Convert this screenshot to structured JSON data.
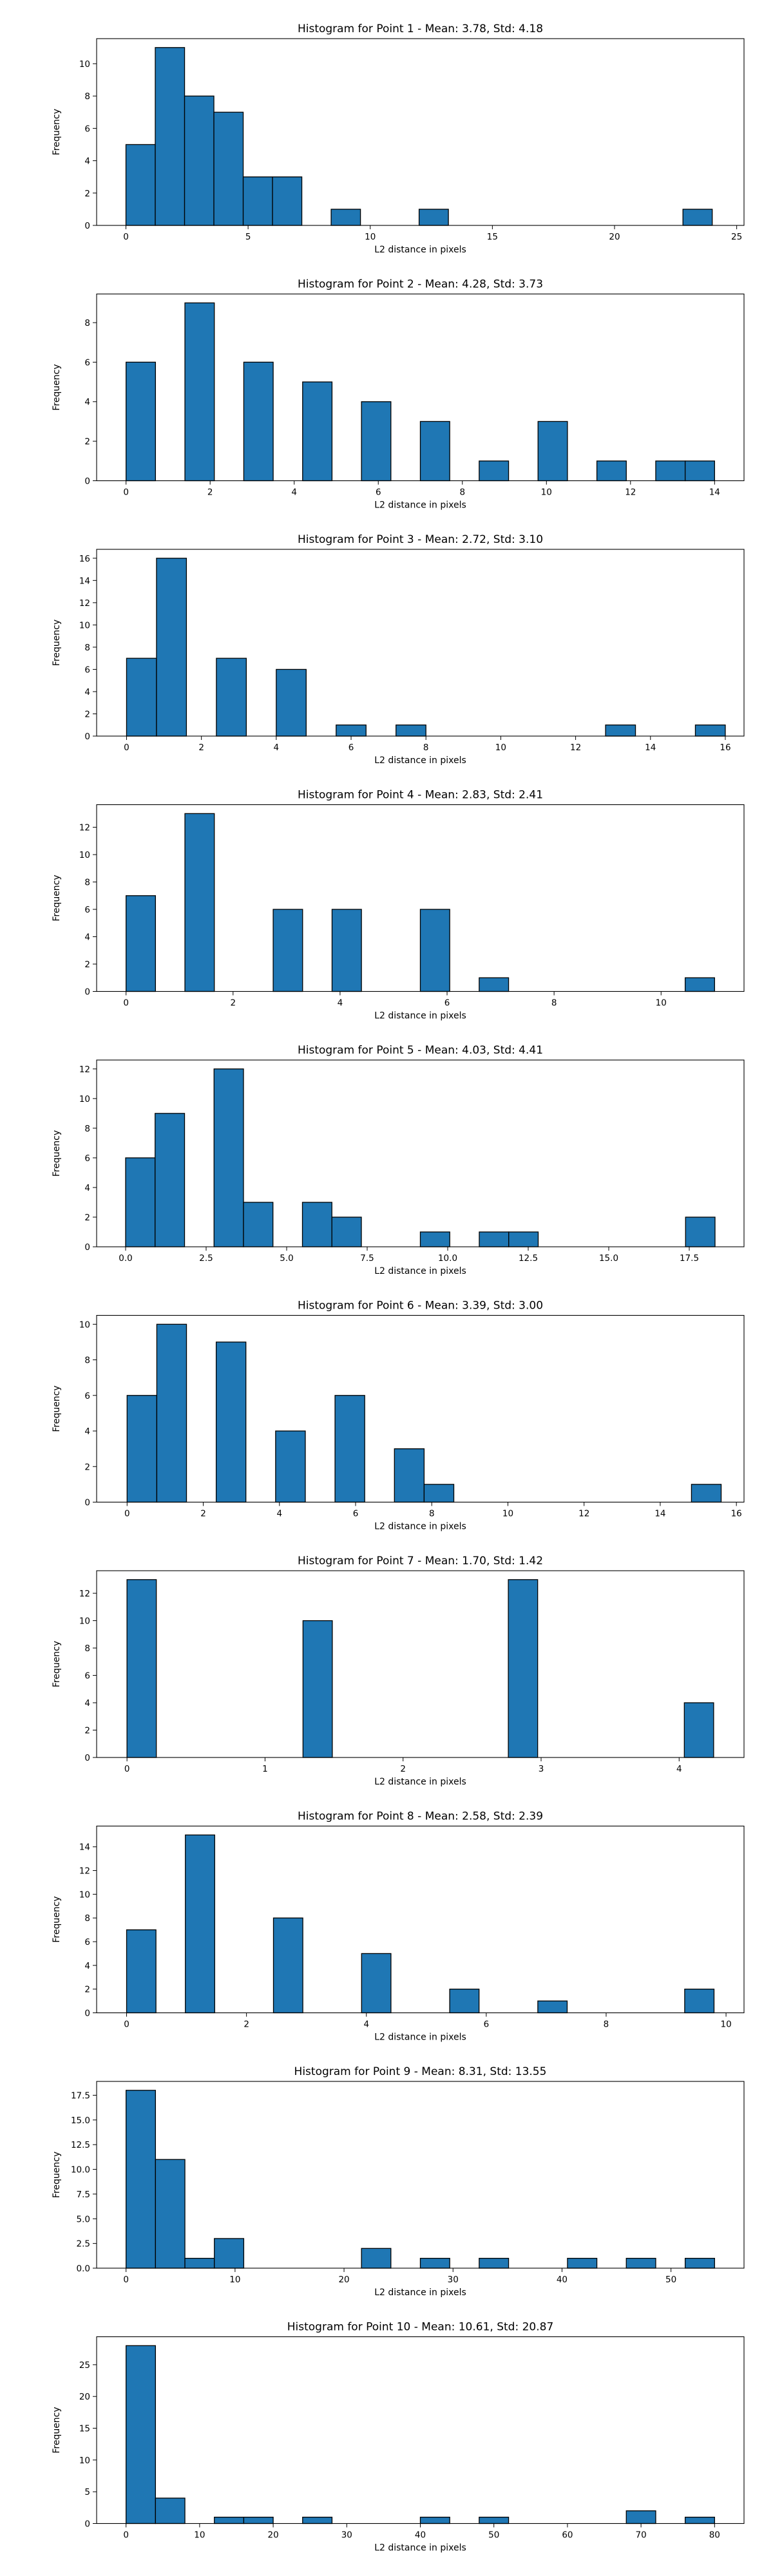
{
  "figure": {
    "background": "#ffffff",
    "bar_color": "#1f77b4",
    "edge_color": "#000000"
  },
  "chart_data": [
    {
      "type": "bar",
      "title": "Histogram for Point 1 - Mean: 3.78, Std: 4.18",
      "xlabel": "L2 distance in pixels",
      "ylabel": "Frequency",
      "xlim": [
        -1.2,
        25.3
      ],
      "ylim": [
        0,
        11.55
      ],
      "xticks": [
        0,
        5,
        10,
        15,
        20,
        25
      ],
      "xtick_labels": [
        "0",
        "5",
        "10",
        "15",
        "20",
        "25"
      ],
      "yticks": [
        0,
        2,
        4,
        6,
        8,
        10
      ],
      "ytick_labels": [
        "0",
        "2",
        "4",
        "6",
        "8",
        "10"
      ],
      "bins": [
        [
          0,
          1.2,
          5
        ],
        [
          1.2,
          2.4,
          11
        ],
        [
          2.4,
          3.6,
          8
        ],
        [
          3.6,
          4.8,
          7
        ],
        [
          4.8,
          6.0,
          3
        ],
        [
          6.0,
          7.2,
          3
        ],
        [
          8.4,
          9.6,
          1
        ],
        [
          12.0,
          13.2,
          1
        ],
        [
          22.8,
          24.0,
          1
        ]
      ],
      "grid": false
    },
    {
      "type": "bar",
      "title": "Histogram for Point 2 - Mean: 4.28, Std: 3.73",
      "xlabel": "L2 distance in pixels",
      "ylabel": "Frequency",
      "xlim": [
        -0.7,
        14.7
      ],
      "ylim": [
        0,
        9.45
      ],
      "xticks": [
        0,
        2,
        4,
        6,
        8,
        10,
        12,
        14
      ],
      "xtick_labels": [
        "0",
        "2",
        "4",
        "6",
        "8",
        "10",
        "12",
        "14"
      ],
      "yticks": [
        0,
        2,
        4,
        6,
        8
      ],
      "ytick_labels": [
        "0",
        "2",
        "4",
        "6",
        "8"
      ],
      "bins": [
        [
          0,
          0.7,
          6
        ],
        [
          1.4,
          2.1,
          9
        ],
        [
          2.8,
          3.5,
          6
        ],
        [
          4.2,
          4.9,
          5
        ],
        [
          5.6,
          6.3,
          4
        ],
        [
          7.0,
          7.7,
          3
        ],
        [
          8.4,
          9.1,
          1
        ],
        [
          9.8,
          10.5,
          3
        ],
        [
          11.2,
          11.9,
          1
        ],
        [
          12.6,
          13.3,
          1
        ],
        [
          13.3,
          14.0,
          1
        ]
      ],
      "grid": false
    },
    {
      "type": "bar",
      "title": "Histogram for Point 3 - Mean: 2.72, Std: 3.10",
      "xlabel": "L2 distance in pixels",
      "ylabel": "Frequency",
      "xlim": [
        -0.8,
        16.5
      ],
      "ylim": [
        0,
        16.8
      ],
      "xticks": [
        0,
        2,
        4,
        6,
        8,
        10,
        12,
        14,
        16
      ],
      "xtick_labels": [
        "0",
        "2",
        "4",
        "6",
        "8",
        "10",
        "12",
        "14",
        "16"
      ],
      "yticks": [
        0,
        2,
        4,
        6,
        8,
        10,
        12,
        14,
        16
      ],
      "ytick_labels": [
        "0",
        "2",
        "4",
        "6",
        "8",
        "10",
        "12",
        "14",
        "16"
      ],
      "bins": [
        [
          0,
          0.8,
          7
        ],
        [
          0.8,
          1.6,
          16
        ],
        [
          2.4,
          3.2,
          7
        ],
        [
          4.0,
          4.8,
          6
        ],
        [
          5.6,
          6.4,
          1
        ],
        [
          7.2,
          8.0,
          1
        ],
        [
          12.8,
          13.6,
          1
        ],
        [
          15.2,
          16.0,
          1
        ]
      ],
      "grid": false
    },
    {
      "type": "bar",
      "title": "Histogram for Point 4 - Mean: 2.83, Std: 2.41",
      "xlabel": "L2 distance in pixels",
      "ylabel": "Frequency",
      "xlim": [
        -0.55,
        11.55
      ],
      "ylim": [
        0,
        13.65
      ],
      "xticks": [
        0,
        2,
        4,
        6,
        8,
        10
      ],
      "xtick_labels": [
        "0",
        "2",
        "4",
        "6",
        "8",
        "10"
      ],
      "yticks": [
        0,
        2,
        4,
        6,
        8,
        10,
        12
      ],
      "ytick_labels": [
        "0",
        "2",
        "4",
        "6",
        "8",
        "10",
        "12"
      ],
      "bins": [
        [
          0,
          0.55,
          7
        ],
        [
          1.1,
          1.65,
          13
        ],
        [
          2.75,
          3.3,
          6
        ],
        [
          3.85,
          4.4,
          6
        ],
        [
          5.5,
          6.05,
          6
        ],
        [
          6.6,
          7.15,
          1
        ],
        [
          10.45,
          11.0,
          1
        ]
      ],
      "grid": false
    },
    {
      "type": "bar",
      "title": "Histogram for Point 5 - Mean: 4.03, Std: 4.41",
      "xlabel": "L2 distance in pixels",
      "ylabel": "Frequency",
      "xlim": [
        -0.9,
        19.2
      ],
      "ylim": [
        0,
        12.6
      ],
      "xticks": [
        0,
        2.5,
        5,
        7.5,
        10,
        12.5,
        15,
        17.5
      ],
      "xtick_labels": [
        "0.0",
        "2.5",
        "5.0",
        "7.5",
        "10.0",
        "12.5",
        "15.0",
        "17.5"
      ],
      "yticks": [
        0,
        2,
        4,
        6,
        8,
        10,
        12
      ],
      "ytick_labels": [
        "0",
        "2",
        "4",
        "6",
        "8",
        "10",
        "12"
      ],
      "bins": [
        [
          0,
          0.915,
          6
        ],
        [
          0.915,
          1.83,
          9
        ],
        [
          2.745,
          3.66,
          12
        ],
        [
          3.66,
          4.575,
          3
        ],
        [
          5.49,
          6.405,
          3
        ],
        [
          6.405,
          7.32,
          2
        ],
        [
          9.15,
          10.065,
          1
        ],
        [
          10.98,
          11.895,
          1
        ],
        [
          11.895,
          12.81,
          1
        ],
        [
          17.385,
          18.3,
          2
        ]
      ],
      "grid": false
    },
    {
      "type": "bar",
      "title": "Histogram for Point 6 - Mean: 3.39, Std: 3.00",
      "xlabel": "L2 distance in pixels",
      "ylabel": "Frequency",
      "xlim": [
        -0.8,
        16.2
      ],
      "ylim": [
        0,
        10.5
      ],
      "xticks": [
        0,
        2,
        4,
        6,
        8,
        10,
        12,
        14,
        16
      ],
      "xtick_labels": [
        "0",
        "2",
        "4",
        "6",
        "8",
        "10",
        "12",
        "14",
        "16"
      ],
      "yticks": [
        0,
        2,
        4,
        6,
        8,
        10
      ],
      "ytick_labels": [
        "0",
        "2",
        "4",
        "6",
        "8",
        "10"
      ],
      "bins": [
        [
          0,
          0.78,
          6
        ],
        [
          0.78,
          1.56,
          10
        ],
        [
          2.34,
          3.12,
          9
        ],
        [
          3.9,
          4.68,
          4
        ],
        [
          5.46,
          6.24,
          6
        ],
        [
          7.02,
          7.8,
          3
        ],
        [
          7.8,
          8.58,
          1
        ],
        [
          14.82,
          15.6,
          1
        ]
      ],
      "grid": false
    },
    {
      "type": "bar",
      "title": "Histogram for Point 7 - Mean: 1.70, Std: 1.42",
      "xlabel": "L2 distance in pixels",
      "ylabel": "Frequency",
      "xlim": [
        -0.22,
        4.47
      ],
      "ylim": [
        0,
        13.65
      ],
      "xticks": [
        0,
        1,
        2,
        3,
        4
      ],
      "xtick_labels": [
        "0",
        "1",
        "2",
        "3",
        "4"
      ],
      "yticks": [
        0,
        2,
        4,
        6,
        8,
        10,
        12
      ],
      "ytick_labels": [
        "0",
        "2",
        "4",
        "6",
        "8",
        "10",
        "12"
      ],
      "bins": [
        [
          0,
          0.2125,
          13
        ],
        [
          1.275,
          1.4875,
          10
        ],
        [
          2.7625,
          2.975,
          13
        ],
        [
          4.0375,
          4.25,
          4
        ]
      ],
      "grid": false
    },
    {
      "type": "bar",
      "title": "Histogram for Point 8 - Mean: 2.58, Std: 2.39",
      "xlabel": "L2 distance in pixels",
      "ylabel": "Frequency",
      "xlim": [
        -0.5,
        10.3
      ],
      "ylim": [
        0,
        15.75
      ],
      "xticks": [
        0,
        2,
        4,
        6,
        8,
        10
      ],
      "xtick_labels": [
        "0",
        "2",
        "4",
        "6",
        "8",
        "10"
      ],
      "yticks": [
        0,
        2,
        4,
        6,
        8,
        10,
        12,
        14
      ],
      "ytick_labels": [
        "0",
        "2",
        "4",
        "6",
        "8",
        "10",
        "12",
        "14"
      ],
      "bins": [
        [
          0,
          0.49,
          7
        ],
        [
          0.98,
          1.47,
          15
        ],
        [
          2.45,
          2.94,
          8
        ],
        [
          3.92,
          4.41,
          5
        ],
        [
          5.39,
          5.88,
          2
        ],
        [
          6.86,
          7.35,
          1
        ],
        [
          9.31,
          9.8,
          2
        ]
      ],
      "grid": false
    },
    {
      "type": "bar",
      "title": "Histogram for Point 9 - Mean: 8.31, Std: 13.55",
      "xlabel": "L2 distance in pixels",
      "ylabel": "Frequency",
      "xlim": [
        -2.7,
        56.7
      ],
      "ylim": [
        0,
        18.9
      ],
      "xticks": [
        0,
        10,
        20,
        30,
        40,
        50
      ],
      "xtick_labels": [
        "0",
        "10",
        "20",
        "30",
        "40",
        "50"
      ],
      "yticks": [
        0,
        2.5,
        5,
        7.5,
        10,
        12.5,
        15,
        17.5
      ],
      "ytick_labels": [
        "0.0",
        "2.5",
        "5.0",
        "7.5",
        "10.0",
        "12.5",
        "15.0",
        "17.5"
      ],
      "bins": [
        [
          0,
          2.7,
          18
        ],
        [
          2.7,
          5.4,
          11
        ],
        [
          5.4,
          8.1,
          1
        ],
        [
          8.1,
          10.8,
          3
        ],
        [
          21.6,
          24.3,
          2
        ],
        [
          27.0,
          29.7,
          1
        ],
        [
          32.4,
          35.1,
          1
        ],
        [
          40.5,
          43.2,
          1
        ],
        [
          45.9,
          48.6,
          1
        ],
        [
          51.3,
          54.0,
          1
        ]
      ],
      "grid": false
    },
    {
      "type": "bar",
      "title": "Histogram for Point 10 - Mean: 10.61, Std: 20.87",
      "xlabel": "L2 distance in pixels",
      "ylabel": "Frequency",
      "xlim": [
        -4.0,
        84.0
      ],
      "ylim": [
        0,
        29.4
      ],
      "xticks": [
        0,
        10,
        20,
        30,
        40,
        50,
        60,
        70,
        80
      ],
      "xtick_labels": [
        "0",
        "10",
        "20",
        "30",
        "40",
        "50",
        "60",
        "70",
        "80"
      ],
      "yticks": [
        0,
        5,
        10,
        15,
        20,
        25
      ],
      "ytick_labels": [
        "0",
        "5",
        "10",
        "15",
        "20",
        "25"
      ],
      "bins": [
        [
          0,
          4.0,
          28
        ],
        [
          4.0,
          8.0,
          4
        ],
        [
          12.0,
          16.0,
          1
        ],
        [
          16.0,
          20.0,
          1
        ],
        [
          24.0,
          28.0,
          1
        ],
        [
          40.0,
          44.0,
          1
        ],
        [
          48.0,
          52.0,
          1
        ],
        [
          68.0,
          72.0,
          2
        ],
        [
          76.0,
          80.0,
          1
        ]
      ],
      "grid": false
    }
  ]
}
